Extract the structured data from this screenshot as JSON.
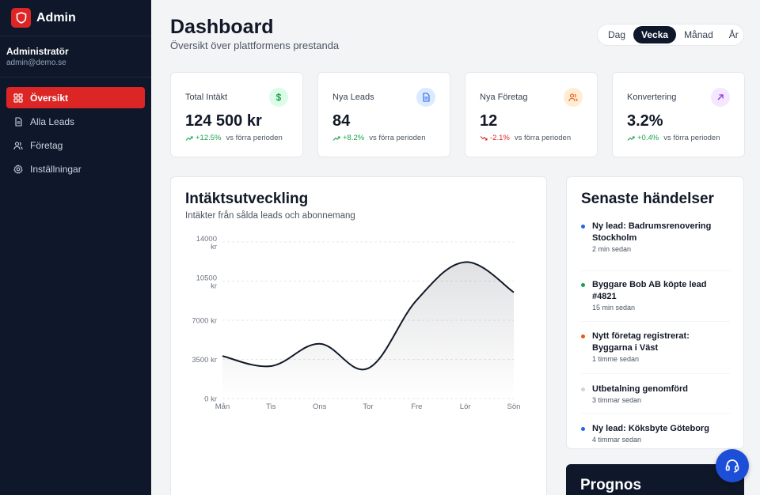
{
  "brand": {
    "name": "Admin"
  },
  "user": {
    "name": "Administratör",
    "email": "admin@demo.se"
  },
  "sidebar": {
    "items": [
      {
        "label": "Översikt",
        "icon": "grid-icon",
        "active": true
      },
      {
        "label": "Alla Leads",
        "icon": "document-icon",
        "active": false
      },
      {
        "label": "Företag",
        "icon": "users-icon",
        "active": false
      },
      {
        "label": "Inställningar",
        "icon": "gear-icon",
        "active": false
      }
    ]
  },
  "header": {
    "title": "Dashboard",
    "subtitle": "Översikt över plattformens prestanda",
    "periods": [
      "Dag",
      "Vecka",
      "Månad",
      "År"
    ],
    "active_period": "Vecka"
  },
  "kpis": [
    {
      "label": "Total Intäkt",
      "value": "124 500 kr",
      "change": "+12.5%",
      "direction": "up",
      "vs": "vs förra perioden",
      "icon": "dollar-icon",
      "icon_color": "#16a34a",
      "icon_bg": "#dcfce7"
    },
    {
      "label": "Nya Leads",
      "value": "84",
      "change": "+8.2%",
      "direction": "up",
      "vs": "vs förra perioden",
      "icon": "document-icon",
      "icon_color": "#2563eb",
      "icon_bg": "#dbeafe"
    },
    {
      "label": "Nya Företag",
      "value": "12",
      "change": "-2.1%",
      "direction": "down",
      "vs": "vs förra perioden",
      "icon": "users-icon",
      "icon_color": "#ea580c",
      "icon_bg": "#ffedd5"
    },
    {
      "label": "Konvertering",
      "value": "3.2%",
      "change": "+0.4%",
      "direction": "up",
      "vs": "vs förra perioden",
      "icon": "arrow-up-right-icon",
      "icon_color": "#9333ea",
      "icon_bg": "#f3e8ff"
    }
  ],
  "revenue_chart": {
    "title": "Intäktsutveckling",
    "subtitle": "Intäkter från sålda leads och abonnemang"
  },
  "chart_data": {
    "type": "area",
    "categories": [
      "Mån",
      "Tis",
      "Ons",
      "Tor",
      "Fre",
      "Lör",
      "Sön"
    ],
    "values": [
      3800,
      2900,
      4900,
      2700,
      8800,
      12200,
      9500
    ],
    "yticks": [
      "0 kr",
      "3500 kr",
      "7000 kr",
      "10500 kr",
      "14000 kr"
    ],
    "ylim": [
      0,
      14000
    ],
    "grid": true,
    "color": "#111827"
  },
  "events": {
    "title": "Senaste händelser",
    "items": [
      {
        "text": "Ny lead: Badrumsrenovering Stockholm",
        "time": "2 min sedan",
        "color": "#2563eb"
      },
      {
        "text": "Byggare Bob AB köpte lead #4821",
        "time": "15 min sedan",
        "color": "#16a34a"
      },
      {
        "text": "Nytt företag registrerat: Byggarna i Väst",
        "time": "1 timme sedan",
        "color": "#ea580c"
      },
      {
        "text": "Utbetalning genomförd",
        "time": "3 timmar sedan",
        "color": "#cbd5e1"
      },
      {
        "text": "Ny lead: Köksbyte Göteborg",
        "time": "4 timmar sedan",
        "color": "#2563eb"
      }
    ]
  },
  "prognos": {
    "title": "Prognos"
  }
}
